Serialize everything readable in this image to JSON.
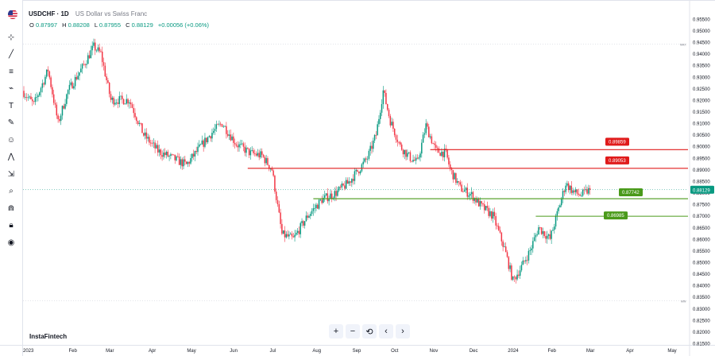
{
  "header": {
    "symbol": "USDCHF · 1D",
    "description": "US Dollar vs Swiss Franc",
    "ohlc": {
      "o_label": "O",
      "o": "0.87997",
      "h_label": "H",
      "h": "0.88208",
      "l_label": "L",
      "l": "0.87955",
      "c_label": "C",
      "c": "0.88129",
      "change": "+0.00056 (+0.06%)"
    }
  },
  "watermark": "InstaFintech",
  "toolbar_icons": [
    "cursor-icon",
    "trend-line-icon",
    "fib-icon",
    "brush-icon",
    "text-icon",
    "pencil-icon",
    "emoji-icon",
    "pattern-icon",
    "measure-icon",
    "zoom-icon",
    "magnet-icon",
    "lock-icon",
    "eye-icon"
  ],
  "nav_buttons": {
    "zoom_in": "+",
    "zoom_out": "−",
    "reset": "⟲",
    "prev": "‹",
    "next": "›"
  },
  "colors": {
    "up": "#089981",
    "down": "#f23645",
    "resistance": "#e01b1b",
    "support": "#4a9a1a",
    "grid_text": "#131722"
  },
  "chart_data": {
    "type": "candlestick",
    "x_ticks": [
      "2023",
      "Feb",
      "Mar",
      "Apr",
      "May",
      "Jun",
      "Jul",
      "Aug",
      "Sep",
      "Oct",
      "Nov",
      "Dec",
      "2024",
      "Feb",
      "Mar",
      "Apr",
      "May"
    ],
    "y_ticks": [
      "0.95500",
      "0.95000",
      "0.94500",
      "0.94000",
      "0.93500",
      "0.93000",
      "0.92500",
      "0.92000",
      "0.91500",
      "0.91000",
      "0.90500",
      "0.90000",
      "0.89500",
      "0.89000",
      "0.88500",
      "0.88000",
      "0.87500",
      "0.87000",
      "0.86500",
      "0.86000",
      "0.85500",
      "0.85000",
      "0.84500",
      "0.84000",
      "0.83500",
      "0.83000",
      "0.82500",
      "0.82000",
      "0.81500"
    ],
    "ylim": [
      0.8145,
      0.9565
    ],
    "last_price": "0.88129",
    "max_label": "MAX",
    "min_label": "MIN",
    "max_value": 0.9441,
    "min_value": 0.8333,
    "levels": [
      {
        "label": "0.89859",
        "value": 0.89859,
        "color": "#e01b1b",
        "start": "Nov"
      },
      {
        "label": "0.89053",
        "value": 0.89053,
        "color": "#e01b1b",
        "start": "Jun"
      },
      {
        "label": "0.87742",
        "value": 0.87742,
        "color": "#4a9a1a",
        "start": "Aug"
      },
      {
        "label": "0.86985",
        "value": 0.86985,
        "color": "#4a9a1a",
        "start": "2024-Feb"
      }
    ],
    "path": [
      [
        0,
        0.924
      ],
      [
        8,
        0.918
      ],
      [
        18,
        0.933
      ],
      [
        25,
        0.91
      ],
      [
        32,
        0.924
      ],
      [
        42,
        0.934
      ],
      [
        50,
        0.943
      ],
      [
        55,
        0.94
      ],
      [
        62,
        0.92
      ],
      [
        75,
        0.92
      ],
      [
        85,
        0.905
      ],
      [
        95,
        0.898
      ],
      [
        105,
        0.895
      ],
      [
        115,
        0.892
      ],
      [
        125,
        0.9
      ],
      [
        133,
        0.906
      ],
      [
        140,
        0.91
      ],
      [
        150,
        0.901
      ],
      [
        160,
        0.897
      ],
      [
        168,
        0.896
      ],
      [
        175,
        0.89
      ],
      [
        182,
        0.862
      ],
      [
        190,
        0.86
      ],
      [
        200,
        0.87
      ],
      [
        210,
        0.877
      ],
      [
        220,
        0.88
      ],
      [
        228,
        0.884
      ],
      [
        236,
        0.89
      ],
      [
        242,
        0.895
      ],
      [
        248,
        0.905
      ],
      [
        253,
        0.924
      ],
      [
        258,
        0.911
      ],
      [
        265,
        0.9
      ],
      [
        272,
        0.895
      ],
      [
        277,
        0.893
      ],
      [
        283,
        0.909
      ],
      [
        290,
        0.898
      ],
      [
        297,
        0.897
      ],
      [
        300,
        0.89
      ],
      [
        307,
        0.882
      ],
      [
        315,
        0.879
      ],
      [
        322,
        0.874
      ],
      [
        330,
        0.87
      ],
      [
        338,
        0.856
      ],
      [
        344,
        0.842
      ],
      [
        350,
        0.848
      ],
      [
        356,
        0.855
      ],
      [
        362,
        0.865
      ],
      [
        370,
        0.86
      ],
      [
        376,
        0.873
      ],
      [
        381,
        0.884
      ],
      [
        387,
        0.88
      ],
      [
        392,
        0.879
      ],
      [
        397,
        0.881
      ]
    ]
  }
}
